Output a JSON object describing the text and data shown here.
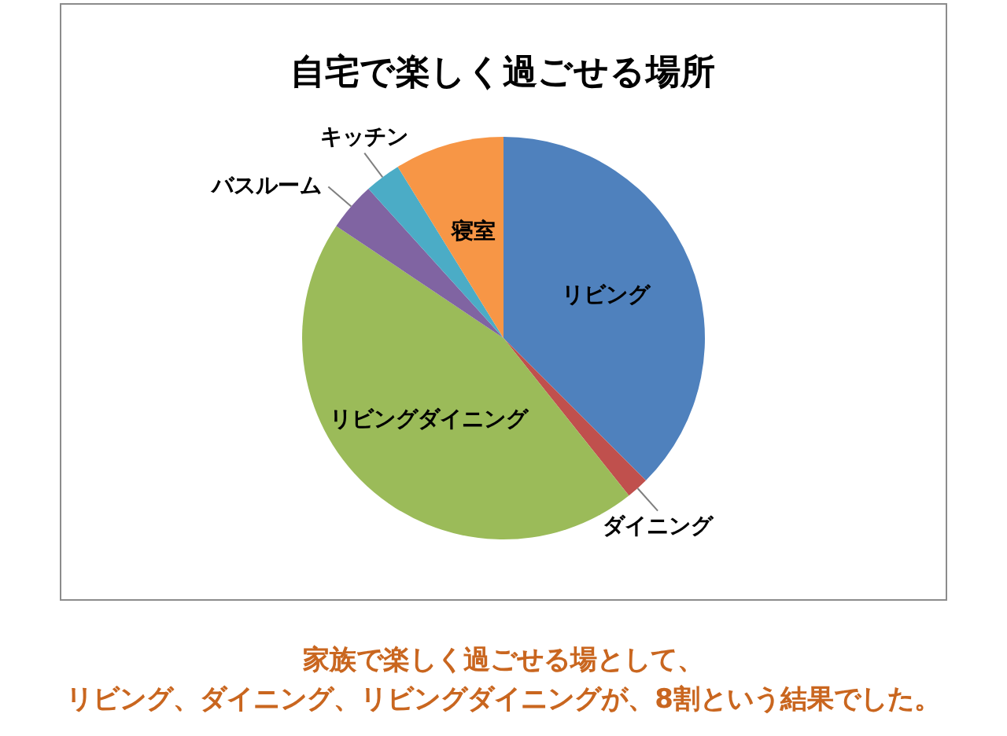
{
  "chart_data": {
    "type": "pie",
    "title": "自宅で楽しく過ごせる場所",
    "categories": [
      "リビング",
      "ダイニング",
      "リビングダイニング",
      "バスルーム",
      "キッチン",
      "寝室"
    ],
    "values": [
      37.5,
      1.8,
      45.1,
      3.9,
      2.9,
      8.8
    ],
    "colors": [
      "#4f81bd",
      "#c0504d",
      "#9bbb59",
      "#8064a2",
      "#4bacc6",
      "#f79646"
    ],
    "annotations": [
      "家族で楽しく過ごせる場として、",
      "リビング、ダイニング、リビングダイニングが、8割という結果でした。"
    ]
  }
}
